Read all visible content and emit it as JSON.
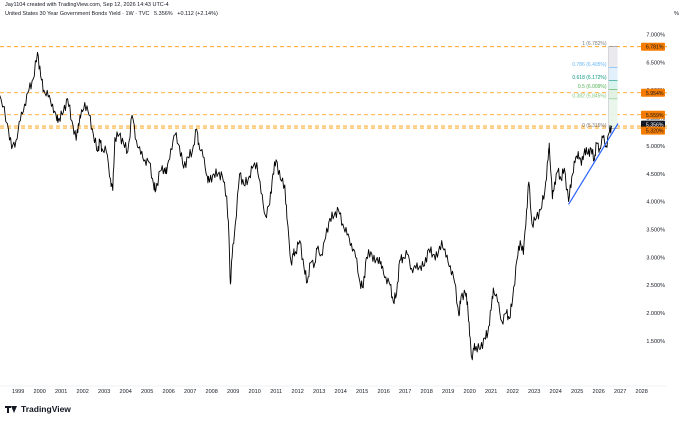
{
  "header": {
    "attribution": "Jay1104 created with TradingView.com, Sep 12, 2026 14:43 UTC-4",
    "symbol_line": "United States 30 Year Government Bonds Yield · 1W · TVC",
    "last_price": "5.356%",
    "change": "+0.112 (+2.14%)",
    "unit_symbol": "%"
  },
  "brand": {
    "name": "TradingView"
  },
  "colors": {
    "price_line": "#000000",
    "trend_line": "#2962ff",
    "level_line": "#ff9800",
    "label_orange": "#f57c00",
    "last_price_badge": "#131722",
    "fib_1": "#787b86",
    "fib_0786": "#64b5f6",
    "fib_0618": "#089981",
    "fib_05": "#4caf50",
    "fib_0382": "#81c784",
    "fib_0": "#787b86"
  },
  "chart_data": {
    "type": "line",
    "title": "United States 30 Year Government Bonds Yield",
    "xlabel": "",
    "ylabel": "",
    "x_ticks": [
      "1999",
      "2000",
      "2001",
      "2002",
      "2003",
      "2004",
      "2005",
      "2006",
      "2007",
      "2008",
      "2009",
      "2010",
      "2011",
      "2012",
      "2013",
      "2014",
      "2015",
      "2016",
      "2017",
      "2018",
      "2019",
      "2020",
      "2021",
      "2022",
      "2023",
      "2024",
      "2025",
      "2026",
      "2027",
      "2028"
    ],
    "y_ticks": [
      "1.500%",
      "2.000%",
      "2.500%",
      "3.000%",
      "3.500%",
      "4.000%",
      "4.500%",
      "5.000%",
      "5.500%",
      "6.000%",
      "6.500%",
      "7.000%"
    ],
    "xlim": [
      1998.4,
      2028.6
    ],
    "ylim": [
      0.95,
      7.2
    ],
    "grid": false,
    "series": [
      {
        "values_format": "[year, yield %]",
        "points": [
          [
            1998.0,
            5.95
          ],
          [
            1998.3,
            5.85
          ],
          [
            1998.6,
            5.4
          ],
          [
            1998.8,
            4.95
          ],
          [
            1999.0,
            5.1
          ],
          [
            1999.2,
            5.45
          ],
          [
            1999.4,
            5.75
          ],
          [
            1999.6,
            6.0
          ],
          [
            1999.8,
            6.2
          ],
          [
            2000.0,
            6.68
          ],
          [
            2000.15,
            6.25
          ],
          [
            2000.3,
            6.0
          ],
          [
            2000.5,
            5.88
          ],
          [
            2000.7,
            5.75
          ],
          [
            2000.9,
            5.45
          ],
          [
            2001.0,
            5.5
          ],
          [
            2001.2,
            5.6
          ],
          [
            2001.4,
            5.85
          ],
          [
            2001.6,
            5.45
          ],
          [
            2001.8,
            5.1
          ],
          [
            2001.9,
            5.4
          ],
          [
            2002.0,
            5.5
          ],
          [
            2002.2,
            5.78
          ],
          [
            2002.4,
            5.55
          ],
          [
            2002.6,
            5.2
          ],
          [
            2002.8,
            4.9
          ],
          [
            2002.9,
            5.1
          ],
          [
            2003.0,
            4.95
          ],
          [
            2003.2,
            4.9
          ],
          [
            2003.4,
            4.4
          ],
          [
            2003.5,
            4.2
          ],
          [
            2003.6,
            5.15
          ],
          [
            2003.8,
            5.2
          ],
          [
            2004.0,
            5.05
          ],
          [
            2004.2,
            4.9
          ],
          [
            2004.4,
            5.55
          ],
          [
            2004.6,
            5.1
          ],
          [
            2004.8,
            4.85
          ],
          [
            2005.0,
            4.75
          ],
          [
            2005.2,
            4.7
          ],
          [
            2005.4,
            4.3
          ],
          [
            2005.5,
            4.2
          ],
          [
            2005.7,
            4.55
          ],
          [
            2005.9,
            4.6
          ],
          [
            2006.0,
            4.5
          ],
          [
            2006.2,
            4.95
          ],
          [
            2006.4,
            5.2
          ],
          [
            2006.6,
            5.0
          ],
          [
            2006.8,
            4.6
          ],
          [
            2007.0,
            4.8
          ],
          [
            2007.2,
            4.9
          ],
          [
            2007.4,
            5.3
          ],
          [
            2007.5,
            5.05
          ],
          [
            2007.7,
            4.8
          ],
          [
            2007.9,
            4.45
          ],
          [
            2008.0,
            4.35
          ],
          [
            2008.2,
            4.5
          ],
          [
            2008.4,
            4.5
          ],
          [
            2008.6,
            4.45
          ],
          [
            2008.8,
            4.1
          ],
          [
            2008.9,
            3.4
          ],
          [
            2008.97,
            2.52
          ],
          [
            2009.05,
            3.0
          ],
          [
            2009.2,
            3.6
          ],
          [
            2009.4,
            4.5
          ],
          [
            2009.6,
            4.3
          ],
          [
            2009.8,
            4.4
          ],
          [
            2010.0,
            4.6
          ],
          [
            2010.2,
            4.7
          ],
          [
            2010.4,
            4.15
          ],
          [
            2010.6,
            3.75
          ],
          [
            2010.8,
            3.95
          ],
          [
            2010.95,
            4.5
          ],
          [
            2011.1,
            4.75
          ],
          [
            2011.3,
            4.4
          ],
          [
            2011.5,
            4.3
          ],
          [
            2011.6,
            3.7
          ],
          [
            2011.8,
            2.9
          ],
          [
            2011.9,
            3.05
          ],
          [
            2012.0,
            3.1
          ],
          [
            2012.2,
            3.3
          ],
          [
            2012.4,
            2.8
          ],
          [
            2012.55,
            2.55
          ],
          [
            2012.7,
            2.9
          ],
          [
            2012.9,
            2.9
          ],
          [
            2013.0,
            3.15
          ],
          [
            2013.2,
            3.05
          ],
          [
            2013.4,
            3.35
          ],
          [
            2013.6,
            3.7
          ],
          [
            2013.8,
            3.75
          ],
          [
            2014.0,
            3.85
          ],
          [
            2014.2,
            3.6
          ],
          [
            2014.4,
            3.4
          ],
          [
            2014.6,
            3.25
          ],
          [
            2014.8,
            3.0
          ],
          [
            2015.0,
            2.55
          ],
          [
            2015.15,
            2.45
          ],
          [
            2015.3,
            3.0
          ],
          [
            2015.5,
            3.1
          ],
          [
            2015.7,
            2.9
          ],
          [
            2015.9,
            3.0
          ],
          [
            2016.0,
            2.8
          ],
          [
            2016.2,
            2.65
          ],
          [
            2016.4,
            2.5
          ],
          [
            2016.55,
            2.2
          ],
          [
            2016.7,
            2.35
          ],
          [
            2016.85,
            2.95
          ],
          [
            2017.0,
            3.0
          ],
          [
            2017.2,
            3.05
          ],
          [
            2017.4,
            2.8
          ],
          [
            2017.6,
            2.8
          ],
          [
            2017.8,
            2.85
          ],
          [
            2018.0,
            2.85
          ],
          [
            2018.2,
            3.15
          ],
          [
            2018.4,
            3.05
          ],
          [
            2018.6,
            3.0
          ],
          [
            2018.8,
            3.3
          ],
          [
            2019.0,
            3.0
          ],
          [
            2019.2,
            2.85
          ],
          [
            2019.4,
            2.55
          ],
          [
            2019.6,
            1.95
          ],
          [
            2019.7,
            2.3
          ],
          [
            2019.9,
            2.35
          ],
          [
            2020.0,
            2.2
          ],
          [
            2020.1,
            1.6
          ],
          [
            2020.2,
            1.2
          ],
          [
            2020.3,
            1.35
          ],
          [
            2020.4,
            1.4
          ],
          [
            2020.6,
            1.35
          ],
          [
            2020.8,
            1.55
          ],
          [
            2020.95,
            1.65
          ],
          [
            2021.1,
            2.05
          ],
          [
            2021.2,
            2.45
          ],
          [
            2021.4,
            2.2
          ],
          [
            2021.6,
            1.85
          ],
          [
            2021.8,
            2.0
          ],
          [
            2021.95,
            1.9
          ],
          [
            2022.1,
            2.25
          ],
          [
            2022.3,
            2.95
          ],
          [
            2022.45,
            3.3
          ],
          [
            2022.6,
            3.05
          ],
          [
            2022.75,
            3.85
          ],
          [
            2022.85,
            4.35
          ],
          [
            2023.0,
            3.6
          ],
          [
            2023.2,
            3.7
          ],
          [
            2023.4,
            3.85
          ],
          [
            2023.6,
            4.2
          ],
          [
            2023.75,
            4.75
          ],
          [
            2023.8,
            5.05
          ],
          [
            2023.95,
            4.05
          ],
          [
            2024.05,
            4.35
          ],
          [
            2024.2,
            4.55
          ],
          [
            2024.35,
            4.4
          ],
          [
            2024.5,
            4.6
          ],
          [
            2024.7,
            4.0
          ],
          [
            2024.85,
            4.45
          ],
          [
            2025.0,
            4.7
          ],
          [
            2025.15,
            4.9
          ],
          [
            2025.3,
            4.65
          ],
          [
            2025.45,
            4.95
          ],
          [
            2025.6,
            4.85
          ],
          [
            2025.75,
            4.95
          ],
          [
            2025.9,
            4.75
          ],
          [
            2026.0,
            5.05
          ],
          [
            2026.15,
            4.95
          ],
          [
            2026.3,
            5.15
          ],
          [
            2026.45,
            5.0
          ],
          [
            2026.6,
            5.25
          ],
          [
            2026.72,
            5.36
          ]
        ]
      }
    ],
    "horizontal_levels": [
      6.781,
      5.954,
      5.559,
      5.356,
      5.32
    ],
    "level_labels": [
      "6.781%",
      "5.954%",
      "5.559%",
      "5.356%",
      "5.320%"
    ],
    "fib_retracement": {
      "x_start": 2024.7,
      "x_end": 2026.7,
      "levels": [
        {
          "label": "1 (6.782%)",
          "value": 6.782
        },
        {
          "label": "0.786 (6.405%)",
          "value": 6.405
        },
        {
          "label": "0.618 (6.172%)",
          "value": 6.172
        },
        {
          "label": "0.5 (6.009%)",
          "value": 6.009
        },
        {
          "label": "0.382 (5.845%)",
          "value": 5.845
        },
        {
          "label": "0 (5.315%)",
          "value": 5.315
        }
      ]
    },
    "trend_line": {
      "from": [
        2024.7,
        3.95
      ],
      "to": [
        2027.0,
        5.4
      ]
    }
  }
}
